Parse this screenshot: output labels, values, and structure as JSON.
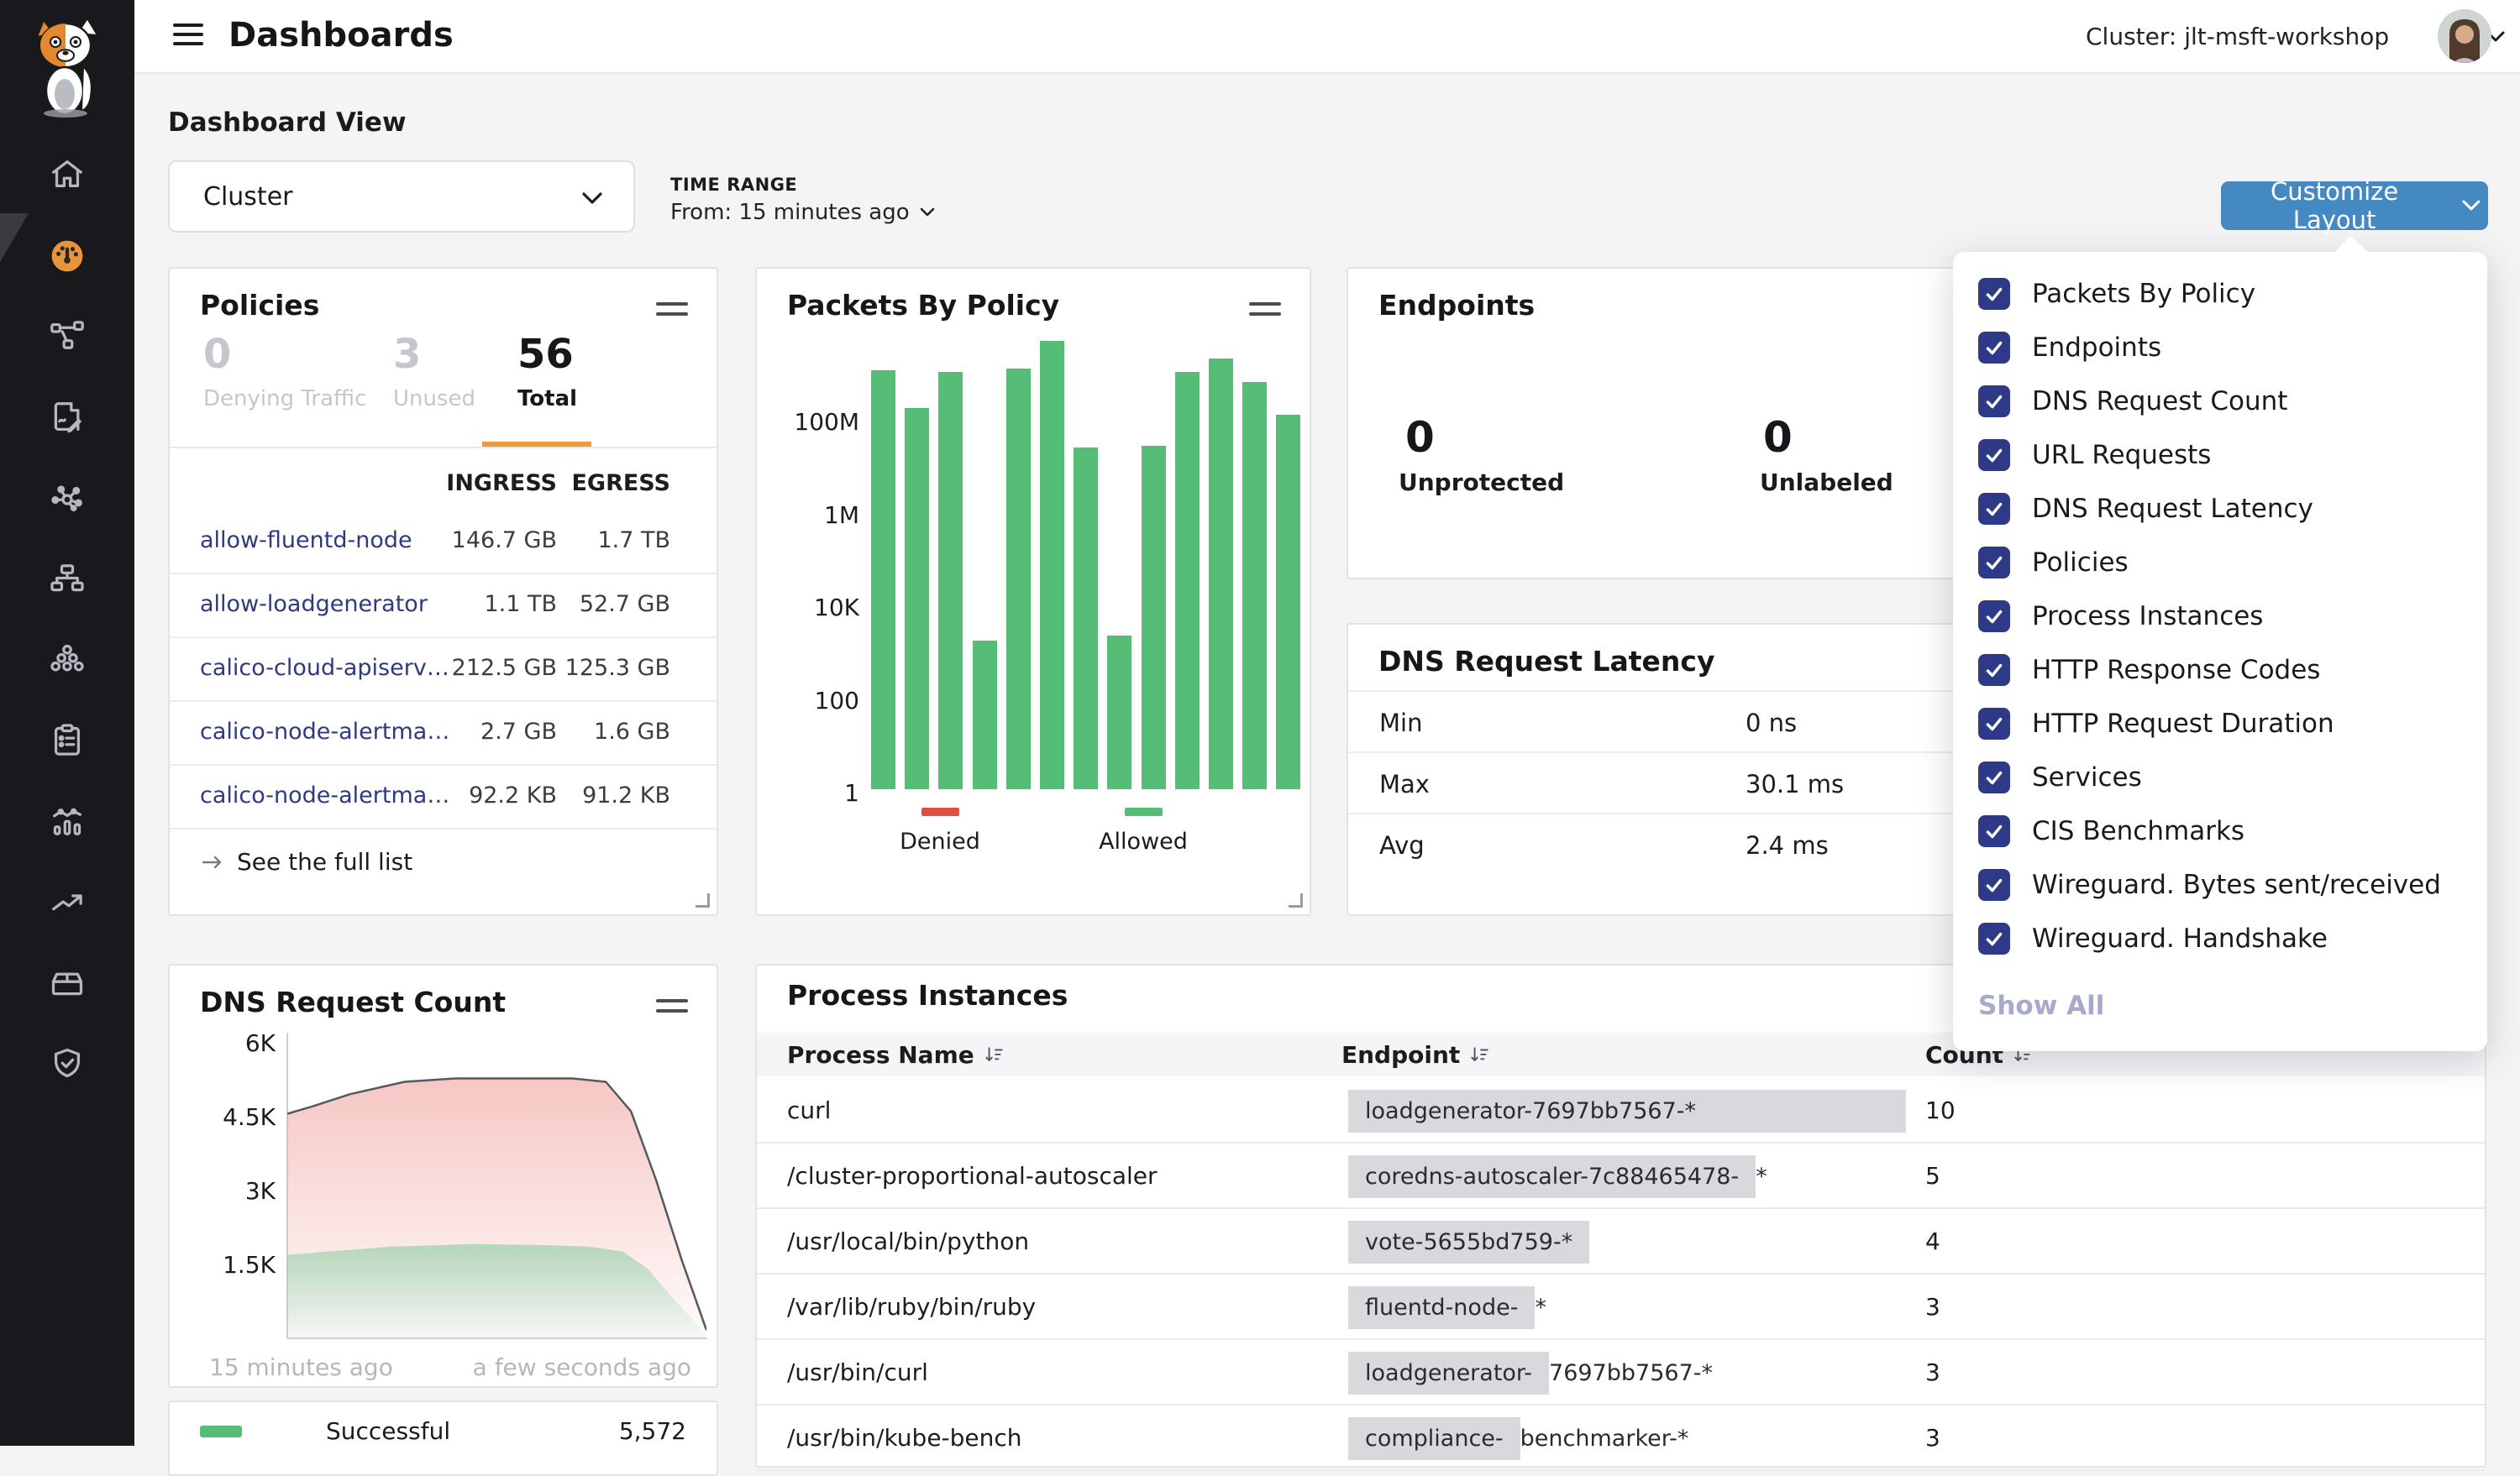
{
  "colors": {
    "accent_orange": "#e8953a",
    "button_blue": "#4489c1",
    "checkbox_navy": "#2e3a87",
    "bar_green": "#56bd76",
    "legend_red": "#dd5143",
    "link_navy": "#2e3a80"
  },
  "sidebar": {
    "icons": [
      "home",
      "dashboard-gauge",
      "network-flow",
      "policy-edit",
      "service-graph",
      "tree-hierarchy",
      "workload-circles",
      "compliance-clipboard",
      "timeline-chart",
      "trending-up",
      "package-box",
      "shield-check"
    ],
    "active": "dashboard-gauge"
  },
  "topbar": {
    "title": "Dashboards",
    "cluster_label": "Cluster: jlt-msft-workshop"
  },
  "page": {
    "heading": "Dashboard View"
  },
  "controls": {
    "view_value": "Cluster",
    "time_range_label": "TIME RANGE",
    "time_range_value": "From: 15 minutes ago",
    "customize_label": "Customize Layout"
  },
  "dropdown": {
    "items": [
      "Packets By Policy",
      "Endpoints",
      "DNS Request Count",
      "URL Requests",
      "DNS Request Latency",
      "Policies",
      "Process Instances",
      "HTTP Response Codes",
      "HTTP Request Duration",
      "Services",
      "CIS Benchmarks",
      "Wireguard. Bytes sent/received",
      "Wireguard. Handshake"
    ],
    "show_all": "Show All"
  },
  "policies": {
    "title": "Policies",
    "stats": [
      {
        "value": "0",
        "label": "Denying Traffic"
      },
      {
        "value": "3",
        "label": "Unused"
      },
      {
        "value": "56",
        "label": "Total"
      }
    ],
    "columns": {
      "ingress": "INGRESS",
      "egress": "EGRESS"
    },
    "rows": [
      {
        "name": "allow-fluentd-node",
        "ingress": "146.7 GB",
        "egress": "1.7 TB"
      },
      {
        "name": "allow-loadgenerator",
        "ingress": "1.1 TB",
        "egress": "52.7 GB"
      },
      {
        "name": "calico-cloud-apiserver-…",
        "ingress": "212.5 GB",
        "egress": "125.3 GB"
      },
      {
        "name": "calico-node-alertmana…",
        "ingress": "2.7 GB",
        "egress": "1.6 GB"
      },
      {
        "name": "calico-node-alertmana…",
        "ingress": "92.2 KB",
        "egress": "91.2 KB"
      }
    ],
    "footer": "See the full list"
  },
  "packets": {
    "title": "Packets By Policy",
    "legend": [
      {
        "label": "Denied",
        "color": "#dd5143"
      },
      {
        "label": "Allowed",
        "color": "#56bd76"
      }
    ]
  },
  "endpoints": {
    "title": "Endpoints",
    "stats": [
      {
        "value": "0",
        "label": "Unprotected"
      },
      {
        "value": "0",
        "label": "Unlabeled"
      }
    ]
  },
  "dns_latency": {
    "title": "DNS Request Latency",
    "rows": [
      {
        "label": "Min",
        "value": "0 ns"
      },
      {
        "label": "Max",
        "value": "30.1 ms"
      },
      {
        "label": "Avg",
        "value": "2.4 ms"
      }
    ]
  },
  "dns_count": {
    "title": "DNS Request Count",
    "x_left": "15 minutes ago",
    "x_right": "a few seconds ago",
    "legend_label": "Successful",
    "legend_value": "5,572"
  },
  "process_instances": {
    "title": "Process Instances",
    "headers": {
      "process": "Process Name",
      "endpoint": "Endpoint",
      "count": "Count"
    },
    "rows": [
      {
        "process": "curl",
        "endpoint_hl": "loadgenerator-7697bb7567-*",
        "endpoint_rest": "",
        "count": "10"
      },
      {
        "process": "/cluster-proportional-autoscaler",
        "endpoint_hl": "coredns-autoscaler-7c88465478-",
        "endpoint_rest": "*",
        "count": "5"
      },
      {
        "process": "/usr/local/bin/python",
        "endpoint_hl": "vote-5655bd759-*",
        "endpoint_rest": "",
        "count": "4"
      },
      {
        "process": "/var/lib/ruby/bin/ruby",
        "endpoint_hl": "fluentd-node-",
        "endpoint_rest": "*",
        "count": "3"
      },
      {
        "process": "/usr/bin/curl",
        "endpoint_hl": "loadgenerator-",
        "endpoint_rest": "7697bb7567-*",
        "count": "3"
      },
      {
        "process": "/usr/bin/kube-bench",
        "endpoint_hl": "compliance-",
        "endpoint_rest": "benchmarker-*",
        "count": "3"
      }
    ]
  },
  "chart_data": [
    {
      "type": "bar",
      "title": "Packets By Policy",
      "yscale": "log",
      "ylim": [
        1,
        10000000000
      ],
      "ytick_labels": [
        "1",
        "100",
        "10K",
        "1M",
        "100M"
      ],
      "series": [
        {
          "name": "Allowed",
          "color": "#56bd76",
          "values": [
            1100000000,
            165000000,
            1000000000,
            1600,
            1200000000,
            4800000000,
            24000000,
            2100,
            26000000,
            1000000000,
            2000000000,
            620000000,
            120000000
          ]
        }
      ],
      "legend": [
        {
          "label": "Denied",
          "color": "#dd5143"
        },
        {
          "label": "Allowed",
          "color": "#56bd76"
        }
      ],
      "legend_position": "bottom",
      "grid": false
    },
    {
      "type": "area",
      "title": "DNS Request Count",
      "ylim": [
        0,
        6200
      ],
      "ytick_labels": [
        "1.5K",
        "3K",
        "4.5K",
        "6K"
      ],
      "xtick_labels": [
        "15 minutes ago",
        "a few seconds ago"
      ],
      "series": [
        {
          "name": "All DNS Requests",
          "stroke": "#58585c",
          "fill": "#eb827a",
          "points": [
            [
              0,
              4550
            ],
            [
              0.06,
              4700
            ],
            [
              0.15,
              4950
            ],
            [
              0.28,
              5200
            ],
            [
              0.4,
              5270
            ],
            [
              0.55,
              5270
            ],
            [
              0.68,
              5270
            ],
            [
              0.76,
              5200
            ],
            [
              0.82,
              4600
            ],
            [
              0.88,
              3200
            ],
            [
              0.94,
              1600
            ],
            [
              1,
              150
            ]
          ]
        },
        {
          "name": "Successful",
          "stroke": "none",
          "fill": "#6fc48f",
          "points": [
            [
              0,
              1680
            ],
            [
              0.1,
              1750
            ],
            [
              0.25,
              1850
            ],
            [
              0.45,
              1900
            ],
            [
              0.6,
              1880
            ],
            [
              0.72,
              1850
            ],
            [
              0.8,
              1750
            ],
            [
              0.86,
              1400
            ],
            [
              0.92,
              800
            ],
            [
              1,
              70
            ]
          ]
        }
      ],
      "legend": [
        {
          "label": "Successful",
          "value": "5,572",
          "color": "#56bd76"
        }
      ],
      "grid": false
    }
  ]
}
